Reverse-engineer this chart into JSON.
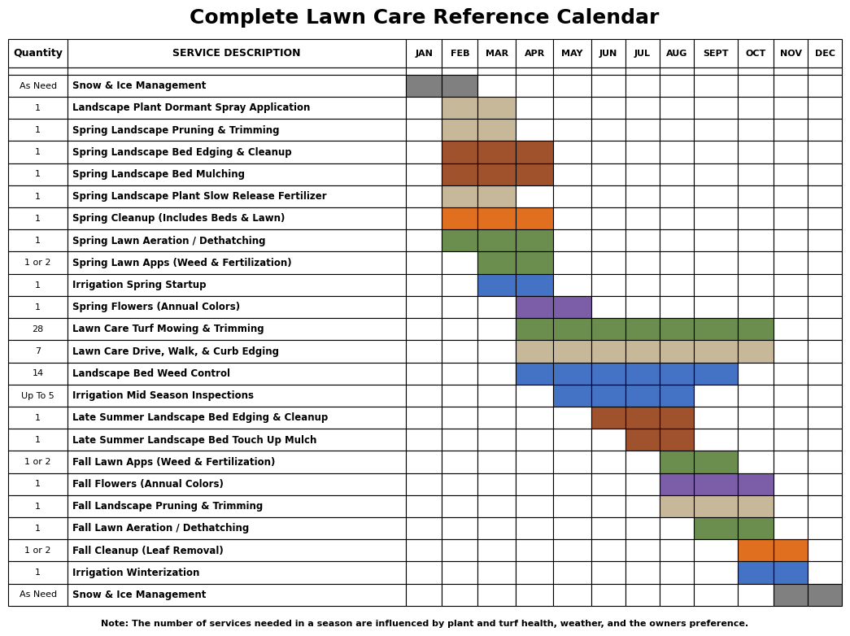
{
  "title": "Complete Lawn Care Reference Calendar",
  "note": "Note: The number of services needed in a season are influenced by plant and turf health, weather, and the owners preference.",
  "rows": [
    {
      "qty": "As Need",
      "desc": "Snow & Ice Management",
      "months": [
        1,
        1,
        0,
        0,
        0,
        0,
        0,
        0,
        0,
        0,
        0,
        0
      ],
      "color": "#808080"
    },
    {
      "qty": "1",
      "desc": "Landscape Plant Dormant Spray Application",
      "months": [
        0,
        1,
        1,
        0,
        0,
        0,
        0,
        0,
        0,
        0,
        0,
        0
      ],
      "color": "#C8B89A"
    },
    {
      "qty": "1",
      "desc": "Spring Landscape Pruning & Trimming",
      "months": [
        0,
        1,
        1,
        0,
        0,
        0,
        0,
        0,
        0,
        0,
        0,
        0
      ],
      "color": "#C8B89A"
    },
    {
      "qty": "1",
      "desc": "Spring Landscape Bed Edging & Cleanup",
      "months": [
        0,
        1,
        1,
        1,
        0,
        0,
        0,
        0,
        0,
        0,
        0,
        0
      ],
      "color": "#A0522D"
    },
    {
      "qty": "1",
      "desc": "Spring Landscape Bed Mulching",
      "months": [
        0,
        1,
        1,
        1,
        0,
        0,
        0,
        0,
        0,
        0,
        0,
        0
      ],
      "color": "#A0522D"
    },
    {
      "qty": "1",
      "desc": "Spring Landscape Plant Slow Release Fertilizer",
      "months": [
        0,
        1,
        1,
        0,
        0,
        0,
        0,
        0,
        0,
        0,
        0,
        0
      ],
      "color": "#C8B89A"
    },
    {
      "qty": "1",
      "desc": "Spring Cleanup (Includes Beds & Lawn)",
      "months": [
        0,
        1,
        1,
        1,
        0,
        0,
        0,
        0,
        0,
        0,
        0,
        0
      ],
      "color": "#E07020"
    },
    {
      "qty": "1",
      "desc": "Spring Lawn Aeration / Dethatching",
      "months": [
        0,
        1,
        1,
        1,
        0,
        0,
        0,
        0,
        0,
        0,
        0,
        0
      ],
      "color": "#6B8E4E"
    },
    {
      "qty": "1 or 2",
      "desc": "Spring Lawn Apps (Weed & Fertilization)",
      "months": [
        0,
        0,
        1,
        1,
        0,
        0,
        0,
        0,
        0,
        0,
        0,
        0
      ],
      "color": "#6B8E4E"
    },
    {
      "qty": "1",
      "desc": "Irrigation Spring Startup",
      "months": [
        0,
        0,
        1,
        1,
        0,
        0,
        0,
        0,
        0,
        0,
        0,
        0
      ],
      "color": "#4472C4"
    },
    {
      "qty": "1",
      "desc": "Spring Flowers (Annual Colors)",
      "months": [
        0,
        0,
        0,
        1,
        1,
        0,
        0,
        0,
        0,
        0,
        0,
        0
      ],
      "color": "#7B5EA7"
    },
    {
      "qty": "28",
      "desc": "Lawn Care Turf Mowing & Trimming",
      "months": [
        0,
        0,
        0,
        1,
        1,
        1,
        1,
        1,
        1,
        1,
        0,
        0
      ],
      "color": "#6B8E4E"
    },
    {
      "qty": "7",
      "desc": "Lawn Care Drive, Walk, & Curb Edging",
      "months": [
        0,
        0,
        0,
        1,
        1,
        1,
        1,
        1,
        1,
        1,
        0,
        0
      ],
      "color": "#C8B89A"
    },
    {
      "qty": "14",
      "desc": "Landscape Bed Weed Control",
      "months": [
        0,
        0,
        0,
        1,
        1,
        1,
        1,
        1,
        1,
        0,
        0,
        0
      ],
      "color": "#4472C4"
    },
    {
      "qty": "Up To 5",
      "desc": "Irrigation Mid Season Inspections",
      "months": [
        0,
        0,
        0,
        0,
        1,
        1,
        1,
        1,
        0,
        0,
        0,
        0
      ],
      "color": "#4472C4"
    },
    {
      "qty": "1",
      "desc": "Late Summer Landscape Bed Edging & Cleanup",
      "months": [
        0,
        0,
        0,
        0,
        0,
        1,
        1,
        1,
        0,
        0,
        0,
        0
      ],
      "color": "#A0522D"
    },
    {
      "qty": "1",
      "desc": "Late Summer Landscape Bed Touch Up Mulch",
      "months": [
        0,
        0,
        0,
        0,
        0,
        0,
        1,
        1,
        0,
        0,
        0,
        0
      ],
      "color": "#A0522D"
    },
    {
      "qty": "1 or 2",
      "desc": "Fall Lawn Apps (Weed & Fertilization)",
      "months": [
        0,
        0,
        0,
        0,
        0,
        0,
        0,
        1,
        1,
        0,
        0,
        0
      ],
      "color": "#6B8E4E"
    },
    {
      "qty": "1",
      "desc": "Fall Flowers (Annual Colors)",
      "months": [
        0,
        0,
        0,
        0,
        0,
        0,
        0,
        1,
        1,
        1,
        0,
        0
      ],
      "color": "#7B5EA7"
    },
    {
      "qty": "1",
      "desc": "Fall Landscape Pruning & Trimming",
      "months": [
        0,
        0,
        0,
        0,
        0,
        0,
        0,
        1,
        1,
        1,
        0,
        0
      ],
      "color": "#C8B89A"
    },
    {
      "qty": "1",
      "desc": "Fall Lawn Aeration / Dethatching",
      "months": [
        0,
        0,
        0,
        0,
        0,
        0,
        0,
        0,
        1,
        1,
        0,
        0
      ],
      "color": "#6B8E4E"
    },
    {
      "qty": "1 or 2",
      "desc": "Fall Cleanup (Leaf Removal)",
      "months": [
        0,
        0,
        0,
        0,
        0,
        0,
        0,
        0,
        0,
        1,
        1,
        0
      ],
      "color": "#E07020"
    },
    {
      "qty": "1",
      "desc": "Irrigation Winterization",
      "months": [
        0,
        0,
        0,
        0,
        0,
        0,
        0,
        0,
        0,
        1,
        1,
        0
      ],
      "color": "#4472C4"
    },
    {
      "qty": "As Need",
      "desc": "Snow & Ice Management",
      "months": [
        0,
        0,
        0,
        0,
        0,
        0,
        0,
        0,
        0,
        0,
        1,
        1
      ],
      "color": "#808080"
    }
  ],
  "month_names": [
    "JAN",
    "FEB",
    "MAR",
    "APR",
    "MAY",
    "JUN",
    "JUL",
    "AUG",
    "SEPT",
    "OCT",
    "NOV",
    "DEC"
  ],
  "bg_color": "#FFFFFF",
  "title_fontsize": 18,
  "note_fontsize": 8
}
